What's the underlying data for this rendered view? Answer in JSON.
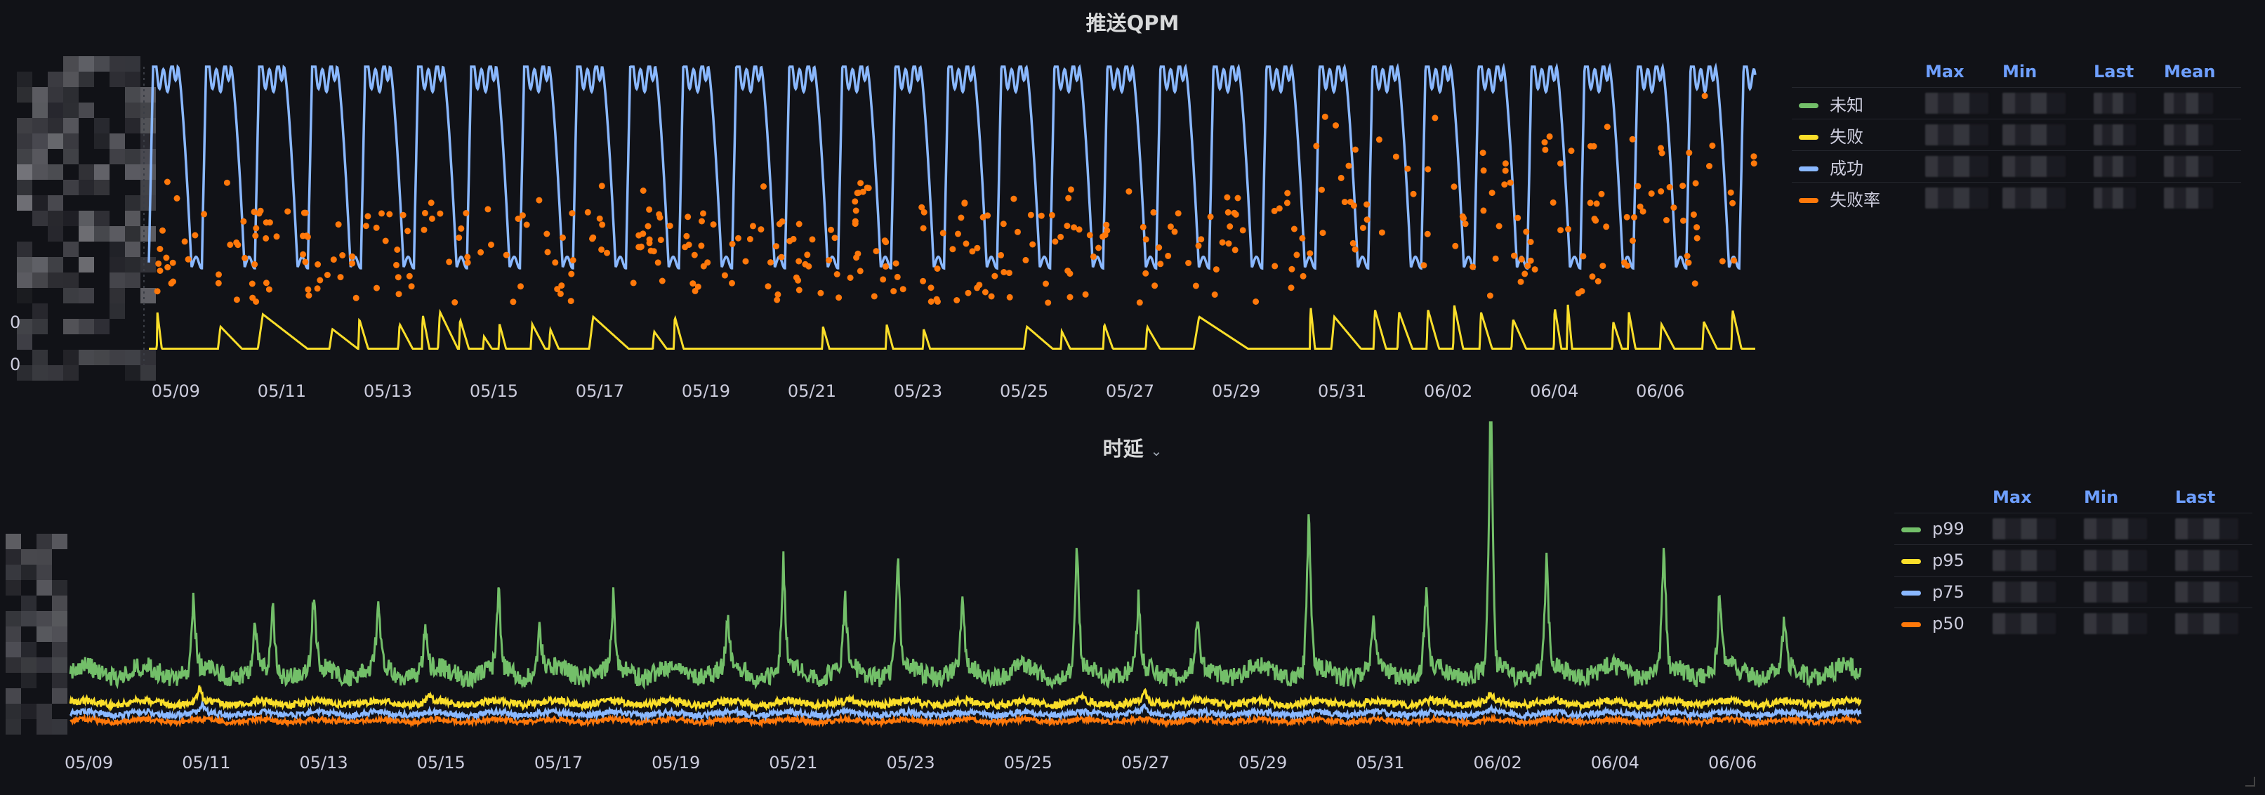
{
  "colors": {
    "background": "#111217",
    "green": "#73bf69",
    "yellow": "#fade2a",
    "blue": "#8ab8ff",
    "orange": "#ff780a",
    "axis_text": "#ccccdc",
    "header": "#6e9fff"
  },
  "chart_data": [
    {
      "id": "qpm",
      "type": "line",
      "title": "推送QPM",
      "x_tick_labels": [
        "05/09",
        "05/11",
        "05/13",
        "05/15",
        "05/17",
        "05/19",
        "05/21",
        "05/23",
        "05/25",
        "05/27",
        "05/29",
        "05/31",
        "06/02",
        "06/04",
        "06/06"
      ],
      "x_range_days": [
        0,
        30.3
      ],
      "y_tick_labels": [
        "0",
        "0"
      ],
      "series": [
        {
          "name": "未知",
          "color": "#73bf69",
          "style": "line",
          "values": []
        },
        {
          "name": "失败",
          "color": "#fade2a",
          "style": "line",
          "baseline": 0.05,
          "spikes": [
            {
              "t": 0.15,
              "h": 0.8,
              "w": 0.1
            },
            {
              "t": 1.3,
              "h": 0.5,
              "w": 0.5
            },
            {
              "t": 2.05,
              "h": 0.75,
              "w": 1.0
            },
            {
              "t": 3.4,
              "h": 0.45,
              "w": 0.6
            },
            {
              "t": 3.95,
              "h": 0.65,
              "w": 0.2
            },
            {
              "t": 4.7,
              "h": 0.55,
              "w": 0.3
            },
            {
              "t": 5.15,
              "h": 0.75,
              "w": 0.15
            },
            {
              "t": 5.45,
              "h": 0.8,
              "w": 0.4
            },
            {
              "t": 5.85,
              "h": 0.65,
              "w": 0.2
            },
            {
              "t": 6.3,
              "h": 0.3,
              "w": 0.2
            },
            {
              "t": 6.6,
              "h": 0.55,
              "w": 0.15
            },
            {
              "t": 7.2,
              "h": 0.55,
              "w": 0.3
            },
            {
              "t": 7.55,
              "h": 0.45,
              "w": 0.2
            },
            {
              "t": 8.3,
              "h": 0.7,
              "w": 0.8
            },
            {
              "t": 9.5,
              "h": 0.4,
              "w": 0.3
            },
            {
              "t": 9.9,
              "h": 0.7,
              "w": 0.2
            },
            {
              "t": 12.7,
              "h": 0.5,
              "w": 0.15
            },
            {
              "t": 13.9,
              "h": 0.55,
              "w": 0.15
            },
            {
              "t": 14.6,
              "h": 0.45,
              "w": 0.15
            },
            {
              "t": 16.5,
              "h": 0.5,
              "w": 0.6
            },
            {
              "t": 17.2,
              "h": 0.4,
              "w": 0.2
            },
            {
              "t": 18.0,
              "h": 0.55,
              "w": 0.2
            },
            {
              "t": 18.8,
              "h": 0.5,
              "w": 0.3
            },
            {
              "t": 19.7,
              "h": 0.7,
              "w": 1.1
            },
            {
              "t": 21.9,
              "h": 0.95,
              "w": 0.1
            },
            {
              "t": 22.3,
              "h": 0.7,
              "w": 0.6
            },
            {
              "t": 23.1,
              "h": 0.85,
              "w": 0.25
            },
            {
              "t": 23.55,
              "h": 0.8,
              "w": 0.3
            },
            {
              "t": 24.1,
              "h": 0.85,
              "w": 0.25
            },
            {
              "t": 24.6,
              "h": 0.95,
              "w": 0.2
            },
            {
              "t": 25.1,
              "h": 0.8,
              "w": 0.25
            },
            {
              "t": 25.7,
              "h": 0.65,
              "w": 0.3
            },
            {
              "t": 26.5,
              "h": 0.9,
              "w": 0.15
            },
            {
              "t": 26.75,
              "h": 1.0,
              "w": 0.1
            },
            {
              "t": 27.6,
              "h": 0.6,
              "w": 0.2
            },
            {
              "t": 27.9,
              "h": 0.8,
              "w": 0.15
            },
            {
              "t": 28.5,
              "h": 0.55,
              "w": 0.3
            },
            {
              "t": 29.3,
              "h": 0.6,
              "w": 0.3
            },
            {
              "t": 29.85,
              "h": 0.85,
              "w": 0.2
            }
          ]
        },
        {
          "name": "成功",
          "color": "#8ab8ff",
          "style": "line",
          "periodic_days": 1.0,
          "peak": 1.0,
          "trough": 0.32
        },
        {
          "name": "失败率",
          "color": "#ff780a",
          "style": "points",
          "count": 420,
          "level": 0.6,
          "spread": 0.4
        }
      ]
    },
    {
      "id": "latency",
      "type": "line",
      "title": "时延",
      "x_tick_labels": [
        "05/09",
        "05/11",
        "05/13",
        "05/15",
        "05/17",
        "05/19",
        "05/21",
        "05/23",
        "05/25",
        "05/27",
        "05/29",
        "05/31",
        "06/02",
        "06/04",
        "06/06"
      ],
      "x_range_days": [
        0,
        30.5
      ],
      "series": [
        {
          "name": "p99",
          "color": "#73bf69",
          "base": 0.26,
          "noise": 0.04,
          "spikes": [
            {
              "t": 2.1,
              "h": 0.33
            },
            {
              "t": 3.15,
              "h": 0.2
            },
            {
              "t": 3.45,
              "h": 0.28
            },
            {
              "t": 4.15,
              "h": 0.33
            },
            {
              "t": 5.25,
              "h": 0.3
            },
            {
              "t": 6.05,
              "h": 0.2
            },
            {
              "t": 7.3,
              "h": 0.34
            },
            {
              "t": 8.0,
              "h": 0.2
            },
            {
              "t": 9.25,
              "h": 0.3
            },
            {
              "t": 11.2,
              "h": 0.22
            },
            {
              "t": 12.15,
              "h": 0.47
            },
            {
              "t": 13.2,
              "h": 0.3
            },
            {
              "t": 14.1,
              "h": 0.5
            },
            {
              "t": 15.2,
              "h": 0.28
            },
            {
              "t": 17.15,
              "h": 0.55
            },
            {
              "t": 18.2,
              "h": 0.3
            },
            {
              "t": 19.2,
              "h": 0.2
            },
            {
              "t": 21.1,
              "h": 0.73
            },
            {
              "t": 22.2,
              "h": 0.22
            },
            {
              "t": 23.1,
              "h": 0.35
            },
            {
              "t": 24.2,
              "h": 1.28
            },
            {
              "t": 25.15,
              "h": 0.5
            },
            {
              "t": 27.15,
              "h": 0.56
            },
            {
              "t": 28.1,
              "h": 0.35
            },
            {
              "t": 29.2,
              "h": 0.2
            }
          ]
        },
        {
          "name": "p95",
          "color": "#fade2a",
          "base": 0.13,
          "noise": 0.015,
          "spikes": [
            {
              "t": 2.2,
              "h": 0.06
            },
            {
              "t": 6.1,
              "h": 0.03
            },
            {
              "t": 17.2,
              "h": 0.03
            },
            {
              "t": 18.3,
              "h": 0.05
            },
            {
              "t": 24.2,
              "h": 0.04
            }
          ]
        },
        {
          "name": "p75",
          "color": "#8ab8ff",
          "base": 0.085,
          "noise": 0.012,
          "spikes": [
            {
              "t": 2.25,
              "h": 0.03
            },
            {
              "t": 18.3,
              "h": 0.03
            },
            {
              "t": 24.2,
              "h": 0.02
            }
          ]
        },
        {
          "name": "p50",
          "color": "#ff780a",
          "base": 0.055,
          "noise": 0.01,
          "spikes": []
        }
      ]
    }
  ],
  "legend_qpm": {
    "headers": [
      "Max",
      "Min",
      "Last",
      "Mean"
    ],
    "rows": [
      {
        "name": "未知",
        "color": "#73bf69"
      },
      {
        "name": "失败",
        "color": "#fade2a"
      },
      {
        "name": "成功",
        "color": "#8ab8ff"
      },
      {
        "name": "失败率",
        "color": "#ff780a"
      }
    ]
  },
  "legend_latency": {
    "headers": [
      "Max",
      "Min",
      "Last"
    ],
    "rows": [
      {
        "name": "p99",
        "color": "#73bf69"
      },
      {
        "name": "p95",
        "color": "#fade2a"
      },
      {
        "name": "p75",
        "color": "#8ab8ff"
      },
      {
        "name": "p50",
        "color": "#ff780a"
      }
    ]
  }
}
